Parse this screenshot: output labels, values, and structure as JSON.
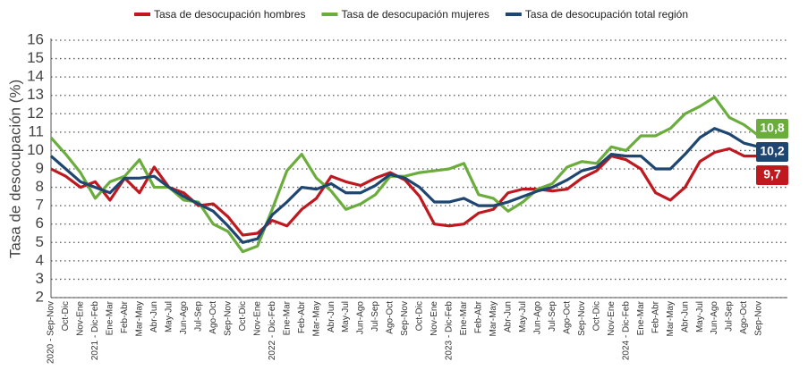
{
  "chart_data": {
    "type": "line",
    "y_label": "Tasa de desocupación (%)",
    "categories": [
      "2020 - Sep-Nov",
      "Oct-Dic",
      "Nov-Ene",
      "2021 - Dic-Feb",
      "Ene-Mar",
      "Feb-Abr",
      "Mar-May",
      "Abr-Jun",
      "May-Jul",
      "Jun-Ago",
      "Jul-Sep",
      "Ago-Oct",
      "Sep-Nov",
      "Oct-Dic",
      "Nov-Ene",
      "2022 - Dic-Feb",
      "Ene-Mar",
      "Feb-Abr",
      "Mar-May",
      "Abr-Jun",
      "May-Jul",
      "Jun-Ago",
      "Jul-Sep",
      "Ago-Oct",
      "Sep-Nov",
      "Oct-Dic",
      "Nov-Ene",
      "2023 - Dic-Feb",
      "Ene-Mar",
      "Feb-Abr",
      "Mar-May",
      "Abr-Jun",
      "May-Jul",
      "Jun-Ago",
      "Jul-Sep",
      "Ago-Oct",
      "Sep-Nov",
      "Oct-Dic",
      "Nov-Ene",
      "2024 - Dic-Feb",
      "Ene-Mar",
      "Feb-Abr",
      "Mar-May",
      "Abr-Jun",
      "May-Jul",
      "Jun-Ago",
      "Jul-Sep",
      "Ago-Oct",
      "Sep-Nov"
    ],
    "series": [
      {
        "name": "Tasa de desocupación hombres",
        "color": "#c0181f",
        "values": [
          9.0,
          8.6,
          8.0,
          8.3,
          7.3,
          8.5,
          7.7,
          9.1,
          8.0,
          7.7,
          7.0,
          7.1,
          6.4,
          5.4,
          5.5,
          6.2,
          5.9,
          6.8,
          7.4,
          8.6,
          8.3,
          8.1,
          8.5,
          8.8,
          8.4,
          7.5,
          6.0,
          5.9,
          6.0,
          6.6,
          6.8,
          7.7,
          7.9,
          7.9,
          7.8,
          7.9,
          8.5,
          8.9,
          9.7,
          9.5,
          9.0,
          7.7,
          7.3,
          8.0,
          9.4,
          9.9,
          10.1,
          9.7,
          9.7
        ],
        "value_labels": [
          null,
          null,
          null,
          null,
          null,
          null,
          null,
          null,
          null,
          null,
          null,
          null,
          null,
          null,
          null,
          null,
          null,
          null,
          null,
          null,
          null,
          null,
          null,
          null,
          null,
          null,
          null,
          null,
          null,
          null,
          null,
          null,
          null,
          null,
          null,
          null,
          null,
          null,
          null,
          null,
          null,
          null,
          null,
          null,
          null,
          null,
          null,
          null,
          "9,7"
        ]
      },
      {
        "name": "Tasa de desocupación mujeres",
        "color": "#6aad3c",
        "values": [
          10.7,
          9.8,
          8.8,
          7.4,
          8.3,
          8.6,
          9.5,
          8.0,
          8.0,
          7.3,
          7.2,
          6.0,
          5.6,
          4.5,
          4.8,
          6.8,
          8.9,
          9.8,
          8.5,
          7.8,
          6.8,
          7.1,
          7.6,
          8.6,
          8.6,
          8.8,
          8.9,
          9.0,
          9.3,
          7.6,
          7.4,
          6.7,
          7.2,
          7.9,
          8.2,
          9.1,
          9.4,
          9.3,
          10.2,
          10.0,
          10.8,
          10.8,
          11.2,
          12.0,
          12.4,
          12.9,
          11.8,
          11.4,
          10.8
        ],
        "value_labels": [
          null,
          null,
          null,
          null,
          null,
          null,
          null,
          null,
          null,
          null,
          null,
          null,
          null,
          null,
          null,
          null,
          null,
          null,
          null,
          null,
          null,
          null,
          null,
          null,
          null,
          null,
          null,
          null,
          null,
          null,
          null,
          null,
          null,
          null,
          null,
          null,
          null,
          null,
          null,
          null,
          null,
          null,
          null,
          null,
          null,
          null,
          null,
          null,
          "10,8"
        ]
      },
      {
        "name": "Tasa de desocupación total región",
        "color": "#1f4571",
        "values": [
          9.7,
          9.0,
          8.3,
          8.0,
          7.7,
          8.5,
          8.5,
          8.6,
          8.0,
          7.5,
          7.1,
          6.7,
          5.9,
          5.0,
          5.2,
          6.5,
          7.2,
          8.0,
          7.9,
          8.2,
          7.7,
          7.7,
          8.1,
          8.7,
          8.5,
          8.0,
          7.2,
          7.2,
          7.4,
          7.0,
          7.0,
          7.2,
          7.5,
          7.8,
          8.0,
          8.4,
          8.9,
          9.1,
          9.8,
          9.7,
          9.7,
          9.0,
          9.0,
          9.8,
          10.7,
          11.2,
          10.9,
          10.4,
          10.2
        ],
        "value_labels": [
          null,
          null,
          null,
          null,
          null,
          null,
          null,
          null,
          null,
          null,
          null,
          null,
          null,
          null,
          null,
          null,
          null,
          null,
          null,
          null,
          null,
          null,
          null,
          null,
          null,
          null,
          null,
          null,
          null,
          null,
          null,
          null,
          null,
          null,
          null,
          null,
          null,
          null,
          null,
          null,
          null,
          null,
          null,
          null,
          null,
          null,
          null,
          null,
          "10,2"
        ]
      }
    ],
    "ylim": [
      2,
      16
    ],
    "yticks": [
      2,
      3,
      4,
      5,
      6,
      7,
      8,
      9,
      10,
      11,
      12,
      13,
      14,
      15,
      16
    ],
    "grid": true,
    "legend": "top"
  }
}
